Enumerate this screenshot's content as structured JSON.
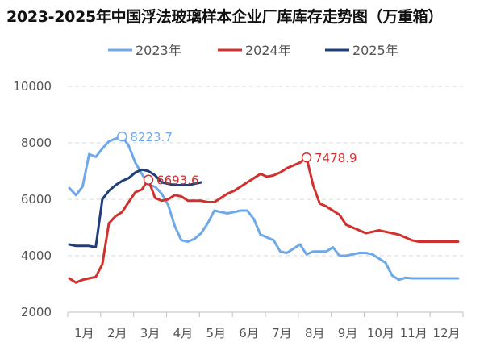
{
  "chart_data": {
    "type": "line",
    "title": "2023-2025年中国浮法玻璃样本企业厂库库存走势图（万重箱）",
    "xlabel": "",
    "ylabel": "",
    "x_tick_labels": [
      "1月",
      "2月",
      "3月",
      "4月",
      "5月",
      "6月",
      "7月",
      "8月",
      "9月",
      "10月",
      "11月",
      "12月"
    ],
    "y_ticks": [
      2000,
      4000,
      6000,
      8000,
      10000
    ],
    "ylim": [
      2000,
      10000
    ],
    "xlim": [
      0,
      12
    ],
    "grid": "horizontal-dashed",
    "legend_position": "top-center",
    "series": [
      {
        "name": "2023年",
        "color": "#6fa8e8",
        "x": [
          0.05,
          0.25,
          0.45,
          0.65,
          0.85,
          1.05,
          1.25,
          1.45,
          1.65,
          1.85,
          2.05,
          2.25,
          2.45,
          2.65,
          2.85,
          3.05,
          3.25,
          3.45,
          3.65,
          3.85,
          4.05,
          4.25,
          4.45,
          4.65,
          4.85,
          5.05,
          5.25,
          5.45,
          5.65,
          5.85,
          6.05,
          6.25,
          6.45,
          6.65,
          6.85,
          7.05,
          7.25,
          7.45,
          7.65,
          7.85,
          8.05,
          8.25,
          8.45,
          8.65,
          8.85,
          9.05,
          9.25,
          9.45,
          9.65,
          9.85,
          10.05,
          10.25,
          10.45,
          10.65,
          10.85,
          11.05,
          11.25,
          11.45,
          11.65,
          11.85
        ],
        "values": [
          6400,
          6150,
          6450,
          7600,
          7500,
          7800,
          8050,
          8150,
          8224,
          7900,
          7300,
          6900,
          6500,
          6450,
          6200,
          5800,
          5050,
          4550,
          4500,
          4600,
          4800,
          5150,
          5600,
          5550,
          5500,
          5550,
          5600,
          5600,
          5300,
          4750,
          4650,
          4550,
          4150,
          4100,
          4250,
          4400,
          4050,
          4150,
          4150,
          4150,
          4300,
          4000,
          4000,
          4050,
          4100,
          4100,
          4050,
          3900,
          3750,
          3300,
          3150,
          3220,
          3200,
          3200,
          3200,
          3200,
          3200,
          3200,
          3200,
          3200
        ]
      },
      {
        "name": "2024年",
        "color": "#d0312d",
        "x": [
          0.05,
          0.25,
          0.45,
          0.65,
          0.85,
          1.05,
          1.25,
          1.45,
          1.65,
          1.85,
          2.05,
          2.25,
          2.45,
          2.65,
          2.85,
          3.05,
          3.25,
          3.45,
          3.65,
          3.85,
          4.05,
          4.25,
          4.45,
          4.65,
          4.85,
          5.05,
          5.25,
          5.45,
          5.65,
          5.85,
          6.05,
          6.25,
          6.45,
          6.65,
          6.85,
          7.05,
          7.25,
          7.45,
          7.65,
          7.85,
          8.05,
          8.25,
          8.45,
          8.65,
          8.85,
          9.05,
          9.25,
          9.45,
          9.65,
          9.85,
          10.05,
          10.25,
          10.45,
          10.65,
          10.85,
          11.05,
          11.25,
          11.45,
          11.65,
          11.85
        ],
        "values": [
          3200,
          3050,
          3150,
          3200,
          3250,
          3700,
          5150,
          5400,
          5550,
          5900,
          6250,
          6350,
          6694,
          6050,
          5950,
          6000,
          6150,
          6100,
          5950,
          5950,
          5950,
          5900,
          5900,
          6050,
          6200,
          6300,
          6450,
          6600,
          6750,
          6900,
          6800,
          6850,
          6950,
          7100,
          7200,
          7300,
          7479,
          6500,
          5850,
          5750,
          5600,
          5450,
          5100,
          5000,
          4900,
          4800,
          4850,
          4900,
          4850,
          4800,
          4750,
          4650,
          4550,
          4500,
          4500,
          4500,
          4500,
          4500,
          4500,
          4500
        ]
      },
      {
        "name": "2025年",
        "color": "#1f3e7a",
        "x": [
          0.05,
          0.25,
          0.45,
          0.65,
          0.85,
          1.05,
          1.25,
          1.45,
          1.65,
          1.85,
          2.05,
          2.25,
          2.45,
          2.65,
          2.85,
          3.05,
          3.25,
          3.45,
          3.65,
          3.85,
          4.05
        ],
        "values": [
          4400,
          4350,
          4350,
          4350,
          4300,
          6000,
          6300,
          6500,
          6650,
          6750,
          6950,
          7050,
          7000,
          6850,
          6600,
          6550,
          6500,
          6500,
          6500,
          6550,
          6600
        ]
      }
    ],
    "annotations": [
      {
        "series": "2023年",
        "text": "8223.7",
        "x": 1.65,
        "y": 8224,
        "color": "#6fa8e8"
      },
      {
        "series": "2024年",
        "text": "6693.6",
        "x": 2.45,
        "y": 6694,
        "color": "#d0312d"
      },
      {
        "series": "2024年",
        "text": "7478.9",
        "x": 7.25,
        "y": 7479,
        "color": "#d0312d"
      }
    ]
  }
}
